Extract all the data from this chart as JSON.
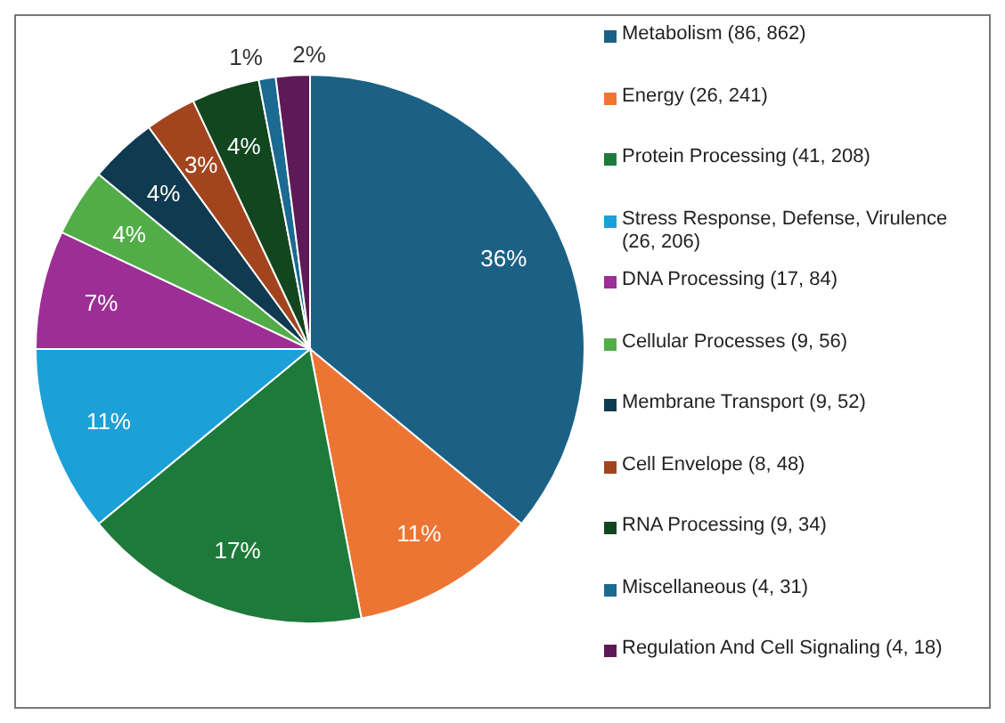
{
  "chart_data": {
    "type": "pie",
    "categories": [
      "Metabolism (86, 862)",
      "Energy (26, 241)",
      "Protein Processing (41, 208)",
      "Stress Response, Defense, Virulence (26, 206)",
      "DNA Processing (17, 84)",
      "Cellular Processes (9, 56)",
      "Membrane Transport (9, 52)",
      "Cell Envelope (8, 48)",
      "RNA Processing (9, 34)",
      "Miscellaneous (4, 31)",
      "Regulation And Cell Signaling (4, 18)"
    ],
    "values": [
      36,
      11,
      17,
      11,
      7,
      4,
      4,
      3,
      4,
      1,
      2
    ],
    "colors": [
      "#1b6185",
      "#ed7534",
      "#1e7a3a",
      "#1ca0d8",
      "#9c2e96",
      "#52ad48",
      "#0f3a50",
      "#a2451f",
      "#12461f",
      "#1a6a92",
      "#5e1a56"
    ],
    "value_labels": [
      "36%",
      "11%",
      "17%",
      "11%",
      "7%",
      "4%",
      "4%",
      "3%",
      "4%",
      "1%",
      "2%"
    ],
    "legend": "right"
  }
}
